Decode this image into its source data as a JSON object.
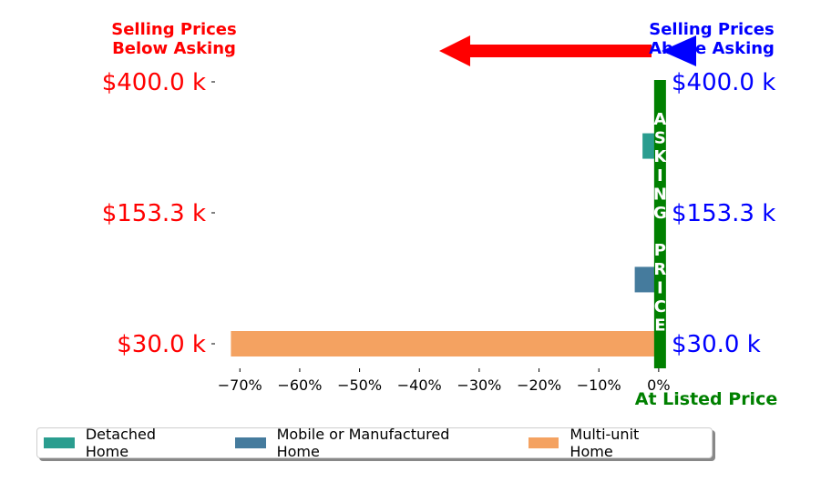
{
  "chart_data": {
    "type": "bar",
    "orientation": "horizontal",
    "xlim": [
      -0.74,
      0.02
    ],
    "x_ticks": [
      "−70%",
      "−60%",
      "−50%",
      "−40%",
      "−30%",
      "−20%",
      "−10%",
      "0%"
    ],
    "y_tick_labels_left": [
      "$400.0 k",
      "$153.3 k",
      "$30.0 k"
    ],
    "y_tick_labels_right": [
      "$400.0 k",
      "$153.3 k",
      "$30.0 k"
    ],
    "series": [
      {
        "name": "Detached Home",
        "color": "#2a9d8f"
      },
      {
        "name": "Mobile or Manufactured Home",
        "color": "#457b9d"
      },
      {
        "name": "Multi-unit Home",
        "color": "#f4a261"
      }
    ],
    "bars": [
      {
        "series": "Detached Home",
        "value": -0.027,
        "row": 0.755
      },
      {
        "series": "Detached Home",
        "value": -0.005,
        "row": 0.5
      },
      {
        "series": "Mobile or Manufactured Home",
        "value": -0.04,
        "row": 0.245
      },
      {
        "series": "Multi-unit Home",
        "value": -0.715,
        "row": 0.0
      }
    ],
    "annotations": {
      "below_label": "Selling Prices\nBelow Asking",
      "above_label": "Selling Prices\nAbove Asking",
      "asking_price_letters": [
        "A",
        "S",
        "K",
        "I",
        "N",
        "G",
        "",
        "P",
        "R",
        "I",
        "C",
        "E"
      ],
      "at_listed_label": "At Listed Price"
    },
    "colors": {
      "below": "#ff0000",
      "above": "#0000ff",
      "asking": "#008000"
    },
    "legend_position": "bottom"
  }
}
